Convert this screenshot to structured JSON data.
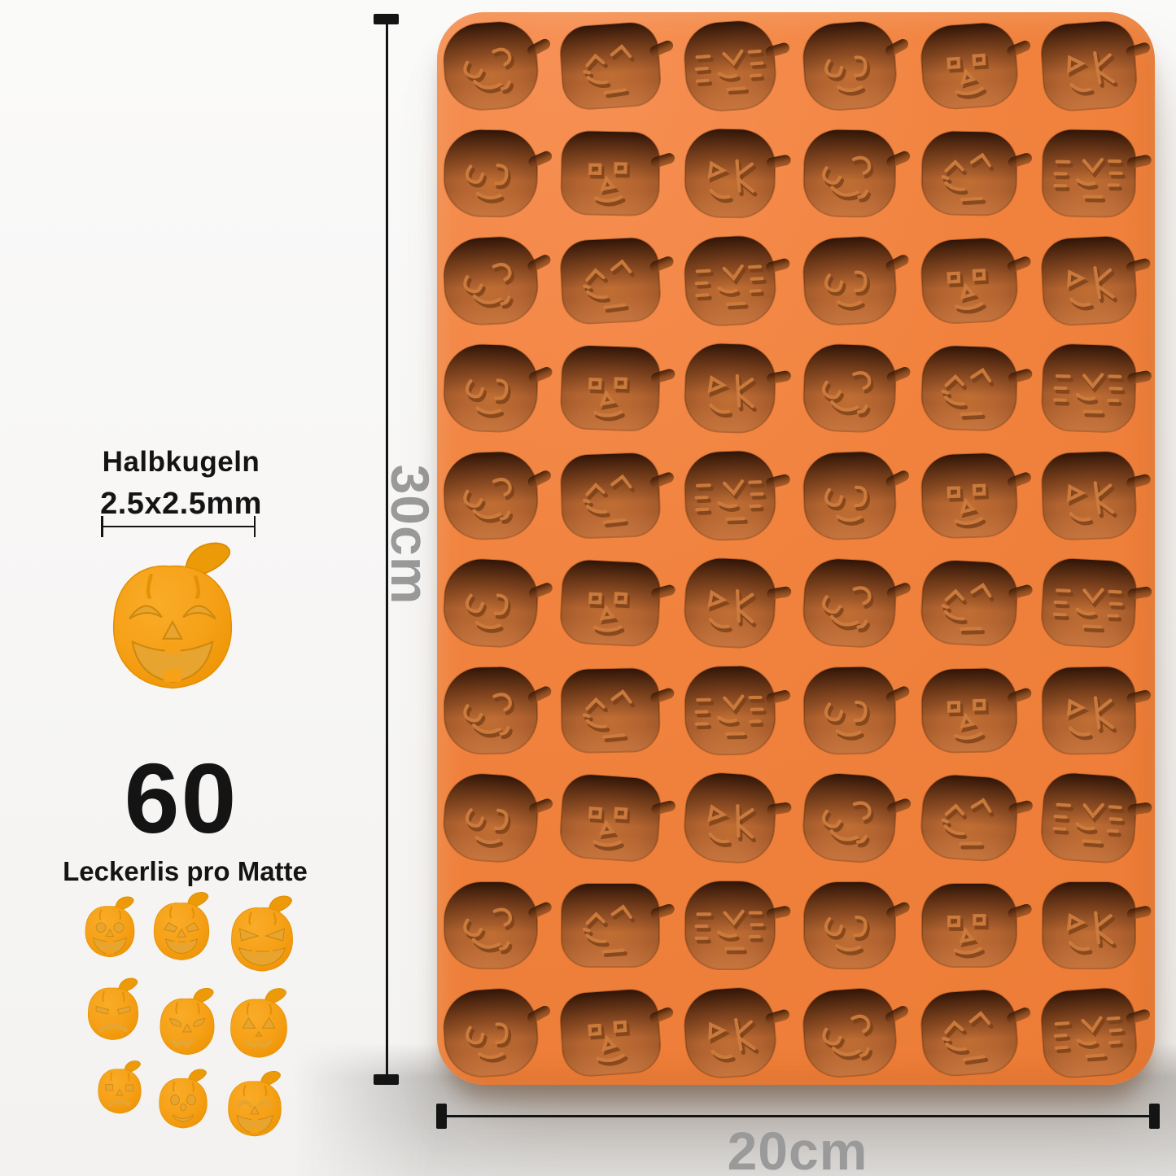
{
  "left_panel": {
    "shape_label": "Halbkugeln",
    "size_label": "2.5x2.5mm",
    "count_value": "60",
    "count_caption": "Leckerlis pro Matte",
    "hero_face": "crescent-smile",
    "grid_faces": [
      "happy-round",
      "happy-arc",
      "scary-grin",
      "sad-flat",
      "spooky",
      "cat",
      "square-frown",
      "surprised",
      "laughing"
    ]
  },
  "dimensions": {
    "height_label": "30cm",
    "width_label": "20cm"
  },
  "mold": {
    "columns": 6,
    "rows": 10,
    "total_cavities": 60,
    "face_variants": [
      "curl-eyes",
      "v-brows",
      "barrel-stripes",
      "loop-eyes",
      "geo-shapes",
      "triangle-slash"
    ]
  },
  "colors": {
    "text_dark": "#141414",
    "dim_line": "#141414",
    "dim_text": "#9a9a9a",
    "mold_surface": "#f0823f",
    "mold_surface_light": "#f79156",
    "cavity_base": "#b4662e",
    "cavity_dark": "#3c1a07",
    "cavity_highlight": "#cd7c3e",
    "cavity_shadowline": "#7b4018",
    "pumpkin_body": "#f6a118",
    "pumpkin_body_light": "#f9ac28",
    "pumpkin_body_dark": "#ee9404",
    "pumpkin_recess": "#e7a42f",
    "pumpkin_recess_edge": "#cf880e",
    "pumpkin_stem": "#ed9a08",
    "background": "#f7f6f4",
    "floor": "#c9c7c5"
  }
}
